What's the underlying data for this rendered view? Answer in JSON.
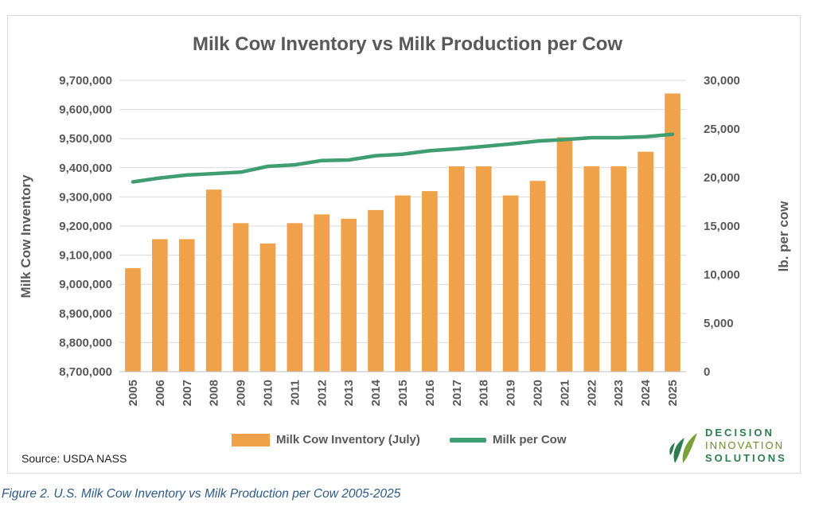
{
  "chart_data": {
    "type": "bar+line",
    "title": "Milk Cow Inventory vs Milk Production per Cow",
    "xlabel": "",
    "ylabel_left": "Milk Cow Inventory",
    "ylabel_right": "lb. per cow",
    "categories": [
      "2005",
      "2006",
      "2007",
      "2008",
      "2009",
      "2010",
      "2011",
      "2012",
      "2013",
      "2014",
      "2015",
      "2016",
      "2017",
      "2018",
      "2019",
      "2020",
      "2021",
      "2022",
      "2023",
      "2024",
      "2025"
    ],
    "left_axis": {
      "ylim": [
        8700000,
        9700000
      ],
      "ticks": [
        "8,700,000",
        "8,800,000",
        "8,900,000",
        "9,000,000",
        "9,100,000",
        "9,200,000",
        "9,300,000",
        "9,400,000",
        "9,500,000",
        "9,600,000",
        "9,700,000"
      ]
    },
    "right_axis": {
      "ylim": [
        0,
        30000
      ],
      "ticks": [
        "0",
        "5,000",
        "10,000",
        "15,000",
        "20,000",
        "25,000",
        "30,000"
      ]
    },
    "series": [
      {
        "name": "Milk Cow Inventory (July)",
        "type": "bar",
        "axis": "left",
        "color": "#f0a24a",
        "values": [
          9055000,
          9155000,
          9155000,
          9325000,
          9210000,
          9140000,
          9210000,
          9240000,
          9225000,
          9255000,
          9305000,
          9320000,
          9405000,
          9405000,
          9305000,
          9355000,
          9505000,
          9405000,
          9405000,
          9455000,
          9655000
        ]
      },
      {
        "name": "Milk per Cow",
        "type": "line",
        "axis": "right",
        "color": "#3f9d72",
        "values": [
          19550,
          19950,
          20250,
          20400,
          20550,
          21150,
          21300,
          21750,
          21800,
          22250,
          22400,
          22750,
          22950,
          23200,
          23450,
          23750,
          23900,
          24100,
          24100,
          24200,
          24450
        ]
      }
    ],
    "grid": true,
    "legend_position": "bottom"
  },
  "source_text": "Source: USDA NASS",
  "caption": "Figure 2. U.S. Milk Cow Inventory vs Milk Production per Cow 2005-2025",
  "logo": {
    "line1": "DECISION",
    "line2": "INNOVATION",
    "line3": "SOLUTIONS"
  }
}
